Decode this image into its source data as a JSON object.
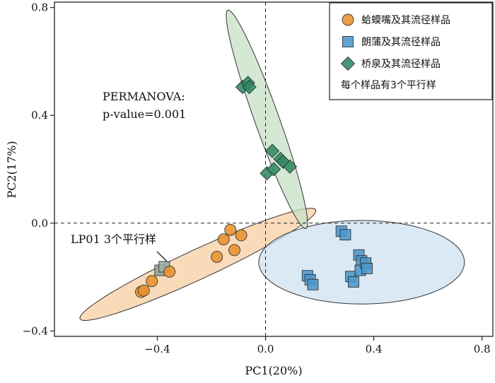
{
  "chart_data": {
    "type": "scatter",
    "xlabel": "PC1(20%)",
    "ylabel": "PC2(17%)",
    "xlim": [
      -0.78,
      0.84
    ],
    "ylim": [
      -0.42,
      0.82
    ],
    "xticks": [
      -0.4,
      0.0,
      0.4,
      0.8
    ],
    "yticks": [
      -0.4,
      0.0,
      0.4,
      0.8
    ],
    "xtick_labels": [
      "−0.4",
      "0.0",
      "0.4",
      "0.8"
    ],
    "ytick_labels": [
      "−0.4",
      "0.0",
      "0.4",
      "0.8"
    ],
    "reference_lines": {
      "x": 0,
      "y": 0,
      "style": "dashed"
    },
    "legend_position": "top-right",
    "legend_note": "每个样品有3个平行样",
    "annotations": {
      "permanova_title": "PERMANOVA:",
      "permanova_p": "p-value=0.001",
      "lp01": "LP01 3个平行样",
      "lp01_arrow_to": {
        "x": -0.37,
        "y": -0.165
      }
    },
    "series": [
      {
        "name": "蛤蟆嘴及其流径样品",
        "marker": "circle",
        "color": "#e8922e",
        "ellipse_fill": "#f7cfa3",
        "ellipse": {
          "cx": -0.25,
          "cy": -0.153,
          "rx": 0.48,
          "ry": 0.055,
          "angle_deg": 24.9
        },
        "points": [
          {
            "x": -0.46,
            "y": -0.255
          },
          {
            "x": -0.45,
            "y": -0.25
          },
          {
            "x": -0.42,
            "y": -0.215
          },
          {
            "x": -0.39,
            "y": -0.175
          },
          {
            "x": -0.355,
            "y": -0.18
          },
          {
            "x": -0.18,
            "y": -0.125
          },
          {
            "x": -0.155,
            "y": -0.06
          },
          {
            "x": -0.13,
            "y": -0.025
          },
          {
            "x": -0.115,
            "y": -0.1
          },
          {
            "x": -0.09,
            "y": -0.045
          }
        ]
      },
      {
        "name": "朗蒲及其流径样品",
        "marker": "square",
        "color": "#4c96cc",
        "ellipse_fill": "#cfe1f2",
        "ellipse": {
          "cx": 0.355,
          "cy": -0.145,
          "rx": 0.38,
          "ry": 0.155,
          "angle_deg": 0
        },
        "points": [
          {
            "x": 0.155,
            "y": -0.195
          },
          {
            "x": 0.165,
            "y": -0.21
          },
          {
            "x": 0.175,
            "y": -0.228
          },
          {
            "x": 0.28,
            "y": -0.03
          },
          {
            "x": 0.295,
            "y": -0.043
          },
          {
            "x": 0.315,
            "y": -0.198
          },
          {
            "x": 0.325,
            "y": -0.218
          },
          {
            "x": 0.345,
            "y": -0.118
          },
          {
            "x": 0.355,
            "y": -0.14
          },
          {
            "x": 0.35,
            "y": -0.175
          },
          {
            "x": 0.37,
            "y": -0.148
          },
          {
            "x": 0.375,
            "y": -0.168
          }
        ]
      },
      {
        "name": "桥泉及其流径样品",
        "marker": "diamond",
        "color": "#2f8a64",
        "ellipse_fill": "#c7e0c5",
        "ellipse": {
          "cx": 0.005,
          "cy": 0.385,
          "rx": 0.43,
          "ry": 0.045,
          "angle_deg": -70.4
        },
        "points": [
          {
            "x": -0.085,
            "y": 0.505
          },
          {
            "x": -0.065,
            "y": 0.52
          },
          {
            "x": -0.06,
            "y": 0.505
          },
          {
            "x": 0.005,
            "y": 0.185
          },
          {
            "x": 0.025,
            "y": 0.268
          },
          {
            "x": 0.03,
            "y": 0.2
          },
          {
            "x": 0.055,
            "y": 0.238
          },
          {
            "x": 0.065,
            "y": 0.228
          },
          {
            "x": 0.09,
            "y": 0.21
          }
        ]
      }
    ]
  }
}
